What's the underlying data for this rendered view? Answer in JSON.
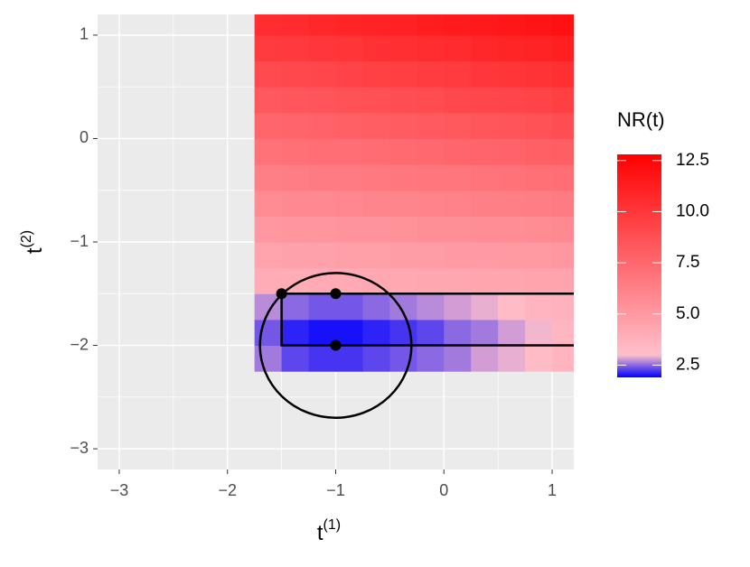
{
  "chart_data": {
    "type": "heatmap",
    "x_label": "t",
    "x_label_sup": "(1)",
    "y_label": "t",
    "y_label_sup": "(2)",
    "xlim": [
      -3.2,
      1.2
    ],
    "ylim": [
      -3.2,
      1.2
    ],
    "xticks": [
      {
        "value": -3,
        "label": "−3"
      },
      {
        "value": -2,
        "label": "−2"
      },
      {
        "value": -1,
        "label": "−1"
      },
      0,
      1
    ],
    "yticks": [
      {
        "value": -3,
        "label": "−3"
      },
      {
        "value": -2,
        "label": "−2"
      },
      {
        "value": -1,
        "label": "−1"
      },
      0,
      1
    ],
    "grid": true,
    "x": [
      -1.625,
      -1.375,
      -1.125,
      -0.875,
      -0.625,
      -0.375,
      -0.125,
      0.125,
      0.375,
      0.625,
      0.875,
      1.125
    ],
    "y": [
      -2.125,
      -1.875,
      -1.625,
      -1.375,
      -1.125,
      -0.875,
      -0.625,
      -0.375,
      -0.125,
      0.125,
      0.375,
      0.625,
      0.875,
      1.125
    ],
    "z": [
      [
        2.6,
        2.3,
        2.2,
        2.2,
        2.3,
        2.4,
        2.5,
        2.6,
        2.8,
        2.9,
        3.2,
        3.6
      ],
      [
        2.4,
        2.1,
        2.0,
        2.0,
        2.1,
        2.2,
        2.3,
        2.5,
        2.6,
        2.8,
        2.95,
        3.5
      ],
      [
        2.7,
        2.5,
        2.4,
        2.4,
        2.5,
        2.6,
        2.7,
        2.8,
        2.9,
        3.2,
        3.6,
        3.7
      ],
      [
        4.0,
        4.0,
        4.1,
        4.1,
        4.2,
        4.2,
        4.3,
        4.3,
        4.4,
        4.4,
        4.5,
        4.5
      ],
      [
        4.5,
        4.6,
        4.6,
        4.7,
        4.7,
        4.8,
        4.8,
        4.9,
        4.9,
        5.0,
        5.0,
        5.1
      ],
      [
        5.1,
        5.2,
        5.2,
        5.3,
        5.3,
        5.4,
        5.5,
        5.5,
        5.6,
        5.6,
        5.7,
        5.8
      ],
      [
        5.7,
        5.8,
        5.8,
        5.9,
        6.0,
        6.0,
        6.1,
        6.2,
        6.3,
        6.3,
        6.4,
        6.5
      ],
      [
        6.3,
        6.4,
        6.5,
        6.5,
        6.6,
        6.7,
        6.8,
        6.8,
        6.9,
        7.0,
        7.1,
        7.2
      ],
      [
        7.0,
        7.1,
        7.2,
        7.2,
        7.3,
        7.4,
        7.5,
        7.6,
        7.7,
        7.8,
        7.9,
        8.0
      ],
      [
        7.6,
        7.7,
        7.8,
        7.9,
        8.0,
        8.1,
        8.2,
        8.3,
        8.4,
        8.5,
        8.6,
        8.8
      ],
      [
        8.3,
        8.4,
        8.5,
        8.6,
        8.7,
        8.8,
        8.9,
        9.1,
        9.2,
        9.3,
        9.4,
        9.6
      ],
      [
        9.0,
        9.1,
        9.2,
        9.4,
        9.5,
        9.6,
        9.7,
        9.8,
        10.0,
        10.1,
        10.2,
        10.4
      ],
      [
        9.8,
        9.9,
        10.0,
        10.1,
        10.3,
        10.4,
        10.5,
        10.6,
        10.8,
        10.9,
        11.0,
        11.2
      ],
      [
        10.5,
        10.6,
        10.8,
        10.9,
        11.0,
        11.1,
        11.3,
        11.4,
        11.5,
        11.7,
        11.8,
        12.0
      ]
    ],
    "color_stops": [
      1.9,
      3.0,
      12.8
    ],
    "colors": [
      "#0000ff",
      "#ffc0cb",
      "#ff0000"
    ],
    "legend_title": "NR(t)",
    "colorbar_lim": [
      1.9,
      12.8
    ],
    "colorbar_ticks": [
      2.5,
      {
        "value": 5,
        "label": "5.0"
      },
      {
        "value": 7.5,
        "label": "7.5"
      },
      {
        "value": 10,
        "label": "10.0"
      },
      12.5
    ],
    "circle": {
      "center": [
        -1,
        -2
      ],
      "radius": 0.7
    },
    "points": {
      "x": [
        -1.5,
        -1,
        -1
      ],
      "y": [
        -1.5,
        -1.5,
        -2
      ]
    },
    "path": {
      "x": [
        1.2,
        -1.5,
        -1.5,
        1.2
      ],
      "y": [
        -1.5,
        -1.5,
        -2,
        -2
      ]
    }
  }
}
